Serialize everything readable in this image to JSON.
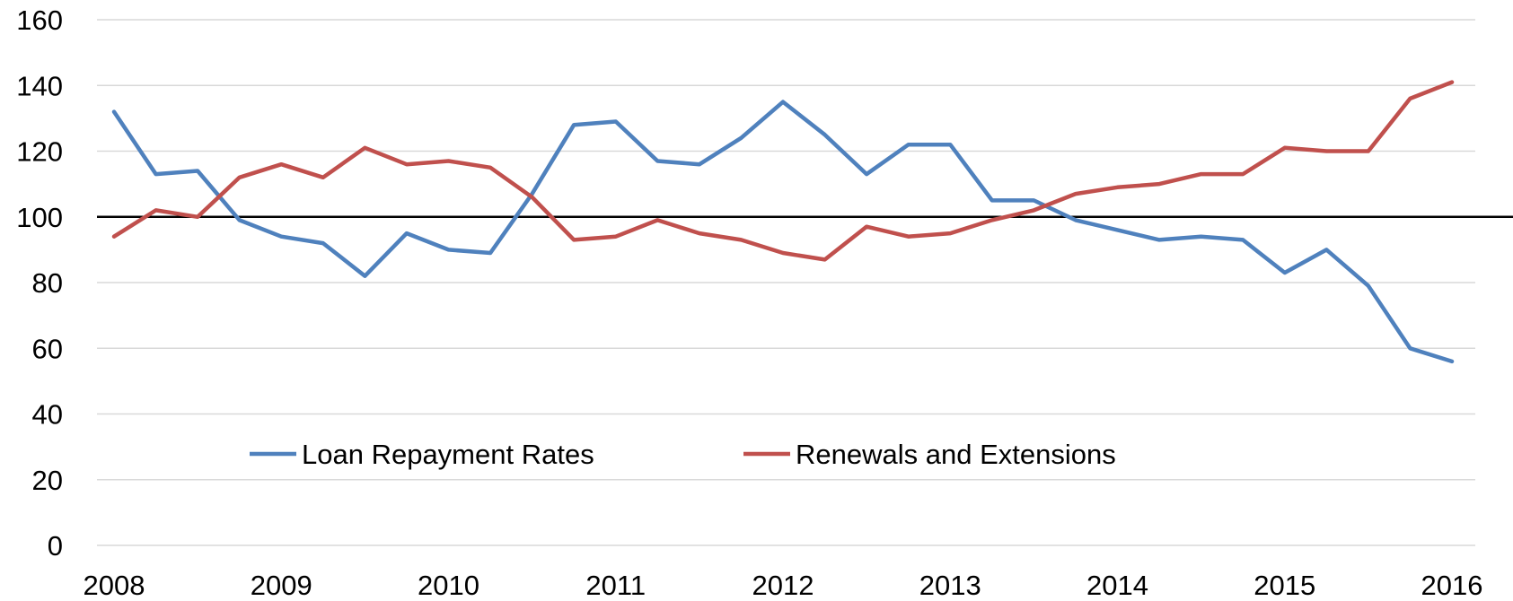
{
  "chart_data": {
    "type": "line",
    "title": "",
    "xlabel": "",
    "ylabel": "",
    "ylim": [
      0,
      160
    ],
    "y_ticks": [
      0,
      20,
      40,
      60,
      80,
      100,
      120,
      140,
      160
    ],
    "xlim": [
      2008,
      2016
    ],
    "x_ticks": [
      2008,
      2009,
      2010,
      2011,
      2012,
      2013,
      2014,
      2015,
      2016
    ],
    "grid": true,
    "legend_position": "bottom-center (inside plot)",
    "reference_line": 100,
    "x": [
      2008.0,
      2008.25,
      2008.5,
      2008.75,
      2009.0,
      2009.25,
      2009.5,
      2009.75,
      2010.0,
      2010.25,
      2010.5,
      2010.75,
      2011.0,
      2011.25,
      2011.5,
      2011.75,
      2012.0,
      2012.25,
      2012.5,
      2012.75,
      2013.0,
      2013.25,
      2013.5,
      2013.75,
      2014.0,
      2014.25,
      2014.5,
      2014.75,
      2015.0,
      2015.25,
      2015.5,
      2015.75,
      2016.0
    ],
    "series": [
      {
        "name": "Loan Repayment Rates",
        "color": "#4f81bd",
        "values": [
          132,
          113,
          114,
          99,
          94,
          92,
          82,
          95,
          90,
          89,
          107,
          128,
          129,
          117,
          116,
          124,
          135,
          125,
          113,
          122,
          122,
          105,
          105,
          99,
          96,
          93,
          94,
          93,
          83,
          90,
          79,
          60,
          56
        ]
      },
      {
        "name": "Renewals and Extensions",
        "color": "#c0504d",
        "values": [
          94,
          102,
          100,
          112,
          116,
          112,
          121,
          116,
          117,
          115,
          106,
          93,
          94,
          99,
          95,
          93,
          89,
          87,
          97,
          94,
          95,
          99,
          102,
          107,
          109,
          110,
          113,
          113,
          121,
          120,
          120,
          136,
          141
        ]
      }
    ]
  }
}
